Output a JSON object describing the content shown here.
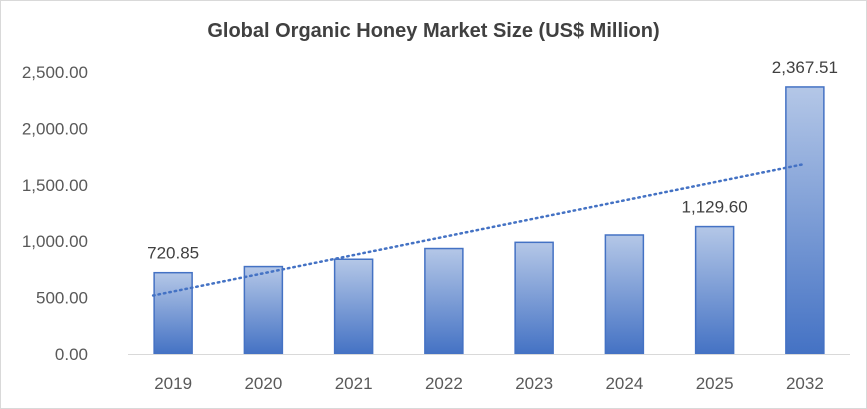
{
  "chart_data": {
    "type": "bar",
    "title": "Global Organic Honey Market Size (US$ Million)",
    "xlabel": "",
    "ylabel": "",
    "categories": [
      "2019",
      "2020",
      "2021",
      "2022",
      "2023",
      "2024",
      "2025",
      "2032"
    ],
    "values": [
      720.85,
      775,
      840,
      935,
      990,
      1055,
      1129.6,
      2367.51
    ],
    "data_labels": [
      {
        "index": 0,
        "text": "720.85"
      },
      {
        "index": 6,
        "text": "1,129.60"
      },
      {
        "index": 7,
        "text": "2,367.51"
      }
    ],
    "ylim": [
      0,
      2500
    ],
    "yticks": [
      0,
      500,
      1000,
      1500,
      2000,
      2500
    ],
    "ytick_labels": [
      "0.00",
      "500.00",
      "1,000.00",
      "1,500.00",
      "2,000.00",
      "2,500.00"
    ],
    "trendline": {
      "type": "linear",
      "style": "dotted"
    },
    "grid": false,
    "legend": "none",
    "colors": {
      "bar_top": "#b4c7e7",
      "bar_bottom": "#4472c4",
      "bar_border": "#4472c4",
      "trendline": "#4472c4",
      "axis": "#d9d9d9",
      "title": "#404040",
      "tick_text": "#595959"
    }
  }
}
